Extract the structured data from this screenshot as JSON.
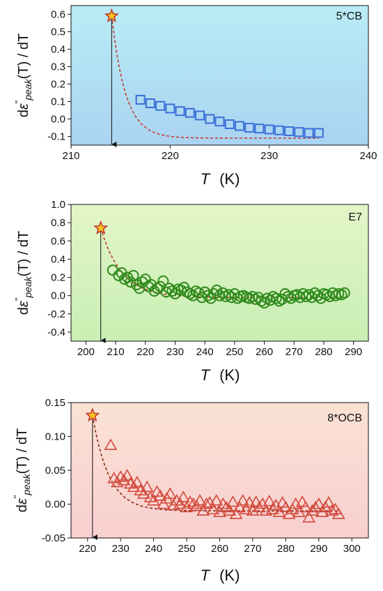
{
  "chart_data": [
    {
      "type": "scatter",
      "id": "5cb",
      "panel_label": "5*CB",
      "xlabel": {
        "symbol": "T",
        "unit": "(K)"
      },
      "ylabel": {
        "prefix": "d",
        "symbol": "ε",
        "prime": "\"",
        "subscript": "peak",
        "suffix": "(T) / dT"
      },
      "xlim": [
        210,
        240
      ],
      "ylim": [
        -0.15,
        0.65
      ],
      "xticks": [
        210,
        220,
        230,
        240
      ],
      "xtick_labels": [
        "210",
        "220",
        "230",
        "240"
      ],
      "yticks": [
        -0.1,
        0.0,
        0.1,
        0.2,
        0.3,
        0.4,
        0.5,
        0.6
      ],
      "ytick_labels": [
        "-0.1",
        "0.0",
        "0.1",
        "0.2",
        "0.3",
        "0.4",
        "0.5",
        "0.6"
      ],
      "marker": "square",
      "colors": {
        "marker": "#3a6fd8",
        "fit": "#c0392b",
        "bg_top": "#b9ecf6",
        "bg_bottom": "#aad3f1"
      },
      "star": {
        "x": 214.1,
        "y": 0.59
      },
      "arrow": {
        "x": 214.1,
        "y_from": 0.57,
        "y_to": -0.15
      },
      "fit": {
        "T0": 214.1,
        "A": 0.59,
        "tau": 1.4,
        "c": -0.11,
        "x_end": 235
      },
      "points": {
        "x": [
          217,
          218,
          219,
          220,
          221,
          222,
          223,
          224,
          225,
          226,
          227,
          228,
          229,
          230,
          231,
          232,
          233,
          234,
          235
        ],
        "y": [
          0.11,
          0.09,
          0.075,
          0.06,
          0.045,
          0.035,
          0.02,
          0.0,
          -0.015,
          -0.03,
          -0.04,
          -0.05,
          -0.055,
          -0.06,
          -0.065,
          -0.07,
          -0.075,
          -0.08,
          -0.08
        ]
      }
    },
    {
      "type": "scatter",
      "id": "e7",
      "panel_label": "E7",
      "xlabel": {
        "symbol": "T",
        "unit": "(K)"
      },
      "ylabel": {
        "prefix": "d",
        "symbol": "ε",
        "prime": "\"",
        "subscript": "peak",
        "suffix": "(T) / dT"
      },
      "xlim": [
        195,
        295
      ],
      "ylim": [
        -0.5,
        1.0
      ],
      "xticks": [
        200,
        210,
        220,
        230,
        240,
        250,
        260,
        270,
        280,
        290
      ],
      "xtick_labels": [
        "200",
        "210",
        "220",
        "230",
        "240",
        "250",
        "260",
        "270",
        "280",
        "290"
      ],
      "yticks": [
        -0.4,
        -0.2,
        0.0,
        0.2,
        0.4,
        0.6,
        0.8,
        1.0
      ],
      "ytick_labels": [
        "-0.4",
        "-0.2",
        "0.0",
        "0.2",
        "0.4",
        "0.6",
        "0.8",
        "1.0"
      ],
      "marker": "circle",
      "colors": {
        "marker": "#2f8a1c",
        "fit": "#c0392b",
        "bg_top": "#e3f5c8",
        "bg_bottom": "#c8efb4"
      },
      "star": {
        "x": 205,
        "y": 0.74
      },
      "arrow": {
        "x": 205,
        "y_from": 0.71,
        "y_to": -0.5
      },
      "fit": {
        "T0": 205,
        "A": 0.74,
        "tau": 7,
        "c": -0.02,
        "x_end": 287
      },
      "points": {
        "x": [
          209,
          211,
          212,
          213,
          214,
          215,
          216,
          217,
          218,
          219,
          220,
          221,
          222,
          223,
          224,
          225,
          226,
          227,
          228,
          229,
          230,
          231,
          232,
          233,
          234,
          235,
          236,
          237,
          238,
          239,
          240,
          241,
          242,
          243,
          244,
          245,
          246,
          247,
          248,
          249,
          250,
          251,
          252,
          253,
          254,
          255,
          256,
          257,
          258,
          259,
          260,
          261,
          262,
          263,
          264,
          265,
          266,
          267,
          268,
          269,
          270,
          271,
          272,
          273,
          274,
          275,
          276,
          277,
          278,
          279,
          280,
          281,
          282,
          283,
          284,
          285,
          286,
          287
        ],
        "y": [
          0.28,
          0.22,
          0.25,
          0.18,
          0.2,
          0.15,
          0.22,
          0.12,
          0.08,
          0.15,
          0.18,
          0.1,
          0.12,
          0.05,
          0.08,
          0.1,
          0.16,
          0.04,
          0.08,
          0.05,
          0.02,
          0.07,
          0.06,
          0.09,
          0.04,
          0.02,
          0.0,
          0.05,
          0.03,
          -0.02,
          0.04,
          0.0,
          -0.03,
          0.02,
          0.06,
          0.0,
          0.03,
          -0.01,
          0.01,
          -0.02,
          0.02,
          -0.03,
          -0.01,
          0.0,
          -0.02,
          -0.03,
          -0.01,
          -0.04,
          -0.02,
          -0.06,
          -0.08,
          -0.03,
          -0.05,
          -0.01,
          -0.03,
          -0.06,
          -0.04,
          0.02,
          -0.01,
          -0.03,
          0.0,
          0.01,
          -0.02,
          0.02,
          -0.01,
          0.01,
          -0.02,
          0.03,
          0.0,
          -0.03,
          0.02,
          0.01,
          -0.01,
          0.03,
          0.0,
          0.02,
          0.01,
          0.03
        ]
      }
    },
    {
      "type": "scatter",
      "id": "8ocb",
      "panel_label": "8*OCB",
      "xlabel": {
        "symbol": "T",
        "unit": "(K)"
      },
      "ylabel": {
        "prefix": "d",
        "symbol": "ε",
        "prime": "\"",
        "subscript": "peak",
        "suffix": "(T) / dT"
      },
      "xlim": [
        215,
        305
      ],
      "ylim": [
        -0.05,
        0.15
      ],
      "xticks": [
        220,
        230,
        240,
        250,
        260,
        270,
        280,
        290,
        300
      ],
      "xtick_labels": [
        "220",
        "230",
        "240",
        "250",
        "260",
        "270",
        "280",
        "290",
        "300"
      ],
      "yticks": [
        -0.05,
        0.0,
        0.05,
        0.1,
        0.15
      ],
      "ytick_labels": [
        "-0.05",
        "0.00",
        "0.05",
        "0.10",
        "0.15"
      ],
      "marker": "triangle",
      "colors": {
        "marker": "#d24a3c",
        "fit": "#8b2a17",
        "bg_top": "#fbe2d4",
        "bg_bottom": "#f8cfcf"
      },
      "star": {
        "x": 221.5,
        "y": 0.131
      },
      "arrow": {
        "x": 221.5,
        "y_from": 0.127,
        "y_to": -0.05
      },
      "fit": {
        "T0": 221.5,
        "A": 0.131,
        "tau": 5,
        "c": -0.01,
        "x_end": 296
      },
      "points": {
        "x": [
          227,
          228,
          229,
          230,
          231,
          232,
          233,
          234,
          235,
          236,
          237,
          238,
          239,
          240,
          241,
          242,
          243,
          244,
          245,
          246,
          247,
          248,
          249,
          250,
          251,
          252,
          253,
          254,
          255,
          256,
          257,
          258,
          259,
          260,
          261,
          262,
          263,
          264,
          265,
          266,
          267,
          268,
          269,
          270,
          271,
          272,
          273,
          274,
          275,
          276,
          277,
          278,
          279,
          280,
          281,
          282,
          283,
          284,
          285,
          286,
          287,
          288,
          289,
          290,
          291,
          292,
          293,
          294,
          295,
          296
        ],
        "y": [
          0.087,
          0.038,
          0.032,
          0.04,
          0.035,
          0.042,
          0.03,
          0.025,
          0.032,
          0.02,
          0.015,
          0.025,
          0.01,
          0.005,
          0.018,
          0.012,
          0.0,
          0.008,
          0.015,
          -0.002,
          0.005,
          0.0,
          0.01,
          -0.005,
          0.003,
          0.0,
          -0.003,
          0.005,
          -0.01,
          0.0,
          0.002,
          -0.008,
          0.005,
          -0.012,
          0.0,
          -0.005,
          -0.01,
          0.003,
          -0.015,
          -0.005,
          0.005,
          -0.008,
          0.002,
          -0.01,
          0.003,
          -0.005,
          0.0,
          -0.01,
          0.004,
          -0.008,
          -0.002,
          -0.012,
          0.002,
          -0.005,
          -0.015,
          -0.008,
          0.0,
          -0.012,
          0.003,
          -0.005,
          -0.02,
          -0.01,
          -0.005,
          0.0,
          -0.012,
          -0.005,
          0.002,
          -0.01,
          -0.008,
          -0.015
        ]
      }
    }
  ]
}
